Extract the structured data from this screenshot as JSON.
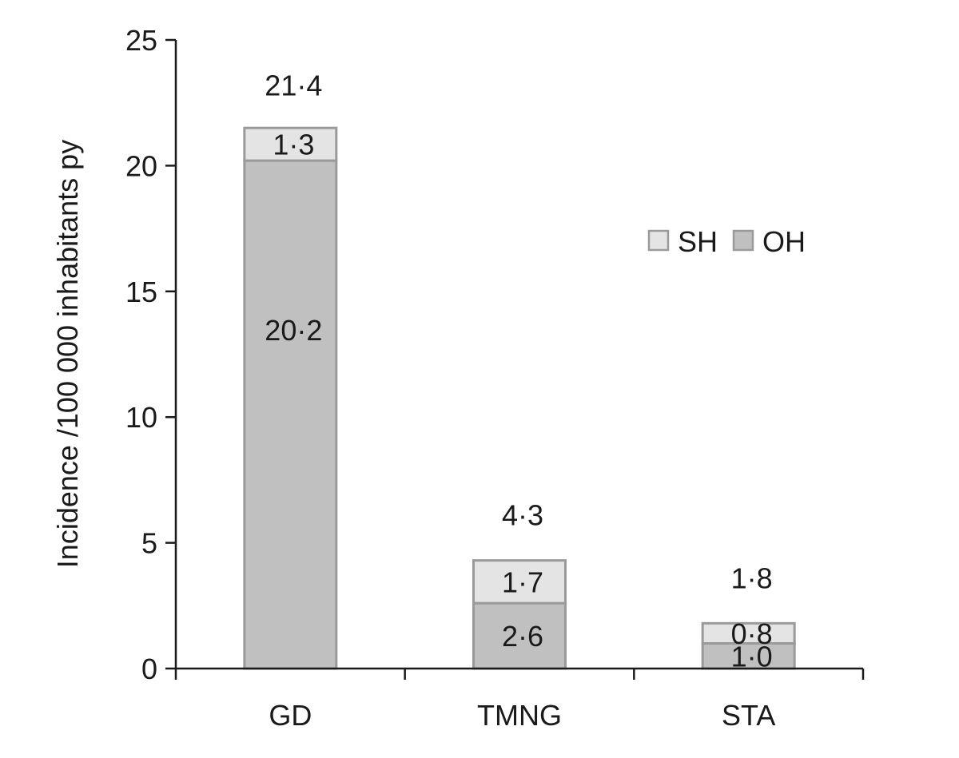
{
  "chart_data": {
    "type": "bar",
    "stacked": true,
    "title": "",
    "xlabel": "",
    "ylabel": "Incidence  /100 000 inhabitants py",
    "ylim": [
      0,
      25
    ],
    "yticks": [
      0,
      5,
      10,
      15,
      20,
      25
    ],
    "ytick_labels": [
      "0",
      "5",
      "10",
      "15",
      "20",
      "25"
    ],
    "categories": [
      "GD",
      "TMNG",
      "STA"
    ],
    "series": [
      {
        "name": "OH",
        "values": [
          20.2,
          2.6,
          1.0
        ],
        "value_labels": [
          "20·2",
          "2·6",
          "1·0"
        ],
        "color": "#c0c0c0"
      },
      {
        "name": "SH",
        "values": [
          1.3,
          1.7,
          0.8
        ],
        "value_labels": [
          "1·3",
          "1·7",
          "0·8"
        ],
        "color": "#e4e4e4"
      }
    ],
    "totals": [
      21.4,
      4.3,
      1.8
    ],
    "total_labels": [
      "21·4",
      "4·3",
      "1·8"
    ],
    "legend": {
      "position": "right",
      "entries": [
        {
          "name": "SH",
          "color": "#e4e4e4"
        },
        {
          "name": "OH",
          "color": "#c0c0c0"
        }
      ]
    },
    "bar_edge_color": "#9a9a9a",
    "axis_color": "#1a1a1a",
    "grid": false
  }
}
